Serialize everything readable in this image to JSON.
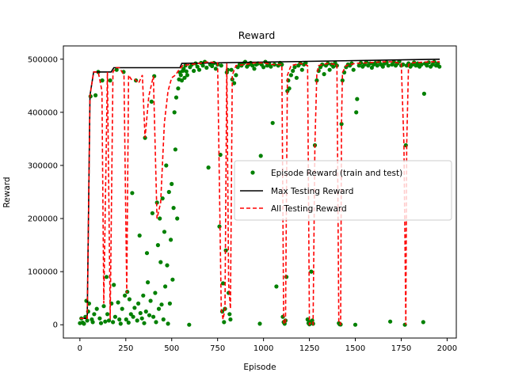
{
  "chart_data": {
    "type": "scatter",
    "title": "Reward",
    "xlabel": "Episode",
    "ylabel": "Reward",
    "xlim": [
      -90,
      2050
    ],
    "ylim": [
      -25000,
      525000
    ],
    "xticks": [
      0,
      250,
      500,
      750,
      1000,
      1250,
      1500,
      1750,
      2000
    ],
    "yticks": [
      0,
      100000,
      200000,
      300000,
      400000,
      500000
    ],
    "grid": false,
    "legend_position": "center-right",
    "colors": {
      "episode": "#008000",
      "max": "#000000",
      "all": "#ff0000"
    },
    "series": [
      {
        "name": "Episode Reward (train and test)",
        "kind": "scatter",
        "points": [
          [
            0,
            3000
          ],
          [
            8,
            12000
          ],
          [
            15,
            4000
          ],
          [
            22,
            2000
          ],
          [
            30,
            15000
          ],
          [
            35,
            45000
          ],
          [
            40,
            8000
          ],
          [
            45,
            25000
          ],
          [
            50,
            40000
          ],
          [
            58,
            430000
          ],
          [
            65,
            10000
          ],
          [
            70,
            5000
          ],
          [
            78,
            20000
          ],
          [
            85,
            432000
          ],
          [
            92,
            30000
          ],
          [
            100,
            476000
          ],
          [
            108,
            12000
          ],
          [
            115,
            3000
          ],
          [
            122,
            460000
          ],
          [
            130,
            35000
          ],
          [
            138,
            6000
          ],
          [
            145,
            90000
          ],
          [
            150,
            20000
          ],
          [
            158,
            8000
          ],
          [
            165,
            460000
          ],
          [
            172,
            40000
          ],
          [
            180,
            5000
          ],
          [
            185,
            75000
          ],
          [
            192,
            15000
          ],
          [
            200,
            480000
          ],
          [
            208,
            42000
          ],
          [
            215,
            10000
          ],
          [
            222,
            2000
          ],
          [
            230,
            30000
          ],
          [
            238,
            476000
          ],
          [
            245,
            55000
          ],
          [
            252,
            10000
          ],
          [
            258,
            62000
          ],
          [
            265,
            4000
          ],
          [
            270,
            48000
          ],
          [
            278,
            20000
          ],
          [
            285,
            248000
          ],
          [
            290,
            15000
          ],
          [
            298,
            32000
          ],
          [
            305,
            460000
          ],
          [
            312,
            8000
          ],
          [
            318,
            40000
          ],
          [
            325,
            168000
          ],
          [
            330,
            22000
          ],
          [
            338,
            12000
          ],
          [
            345,
            55000
          ],
          [
            350,
            3000
          ],
          [
            355,
            352000
          ],
          [
            360,
            25000
          ],
          [
            365,
            135000
          ],
          [
            370,
            80000
          ],
          [
            378,
            18000
          ],
          [
            385,
            45000
          ],
          [
            390,
            420000
          ],
          [
            395,
            210000
          ],
          [
            400,
            15000
          ],
          [
            405,
            468000
          ],
          [
            410,
            60000
          ],
          [
            415,
            5000
          ],
          [
            420,
            230000
          ],
          [
            425,
            150000
          ],
          [
            430,
            30000
          ],
          [
            435,
            200000
          ],
          [
            440,
            118000
          ],
          [
            445,
            38000
          ],
          [
            450,
            238000
          ],
          [
            455,
            10000
          ],
          [
            460,
            175000
          ],
          [
            465,
            72000
          ],
          [
            470,
            300000
          ],
          [
            475,
            112000
          ],
          [
            480,
            2000
          ],
          [
            485,
            250000
          ],
          [
            490,
            40000
          ],
          [
            495,
            160000
          ],
          [
            500,
            265000
          ],
          [
            505,
            85000
          ],
          [
            510,
            220000
          ],
          [
            515,
            400000
          ],
          [
            520,
            330000
          ],
          [
            525,
            428000
          ],
          [
            530,
            200000
          ],
          [
            535,
            445000
          ],
          [
            540,
            462000
          ],
          [
            545,
            475000
          ],
          [
            550,
            470000
          ],
          [
            555,
            460000
          ],
          [
            560,
            478000
          ],
          [
            565,
            482000
          ],
          [
            570,
            465000
          ],
          [
            575,
            488000
          ],
          [
            580,
            477000
          ],
          [
            585,
            470000
          ],
          [
            595,
            0
          ],
          [
            600,
            485000
          ],
          [
            610,
            490000
          ],
          [
            620,
            478000
          ],
          [
            630,
            492000
          ],
          [
            640,
            486000
          ],
          [
            650,
            480000
          ],
          [
            660,
            493000
          ],
          [
            670,
            488000
          ],
          [
            680,
            495000
          ],
          [
            690,
            484000
          ],
          [
            700,
            296000
          ],
          [
            710,
            490000
          ],
          [
            720,
            487000
          ],
          [
            730,
            493000
          ],
          [
            740,
            482000
          ],
          [
            750,
            490000
          ],
          [
            760,
            185000
          ],
          [
            765,
            320000
          ],
          [
            770,
            488000
          ],
          [
            775,
            25000
          ],
          [
            780,
            78000
          ],
          [
            785,
            5000
          ],
          [
            790,
            30000
          ],
          [
            795,
            140000
          ],
          [
            800,
            475000
          ],
          [
            805,
            480000
          ],
          [
            810,
            60000
          ],
          [
            815,
            20000
          ],
          [
            820,
            10000
          ],
          [
            825,
            480000
          ],
          [
            830,
            462000
          ],
          [
            840,
            455000
          ],
          [
            850,
            470000
          ],
          [
            860,
            485000
          ],
          [
            870,
            490000
          ],
          [
            880,
            488000
          ],
          [
            890,
            492000
          ],
          [
            900,
            495000
          ],
          [
            910,
            486000
          ],
          [
            920,
            490000
          ],
          [
            930,
            493000
          ],
          [
            940,
            488000
          ],
          [
            950,
            482000
          ],
          [
            960,
            490000
          ],
          [
            970,
            492000
          ],
          [
            980,
            2000
          ],
          [
            985,
            318000
          ],
          [
            990,
            490000
          ],
          [
            1000,
            485000
          ],
          [
            1010,
            495000
          ],
          [
            1020,
            488000
          ],
          [
            1030,
            492000
          ],
          [
            1040,
            486000
          ],
          [
            1050,
            380000
          ],
          [
            1060,
            490000
          ],
          [
            1070,
            72000
          ],
          [
            1080,
            488000
          ],
          [
            1090,
            493000
          ],
          [
            1100,
            490000
          ],
          [
            1105,
            15000
          ],
          [
            1110,
            5000
          ],
          [
            1115,
            2000
          ],
          [
            1120,
            8000
          ],
          [
            1125,
            90000
          ],
          [
            1130,
            440000
          ],
          [
            1135,
            460000
          ],
          [
            1140,
            445000
          ],
          [
            1150,
            470000
          ],
          [
            1160,
            478000
          ],
          [
            1170,
            485000
          ],
          [
            1180,
            465000
          ],
          [
            1190,
            488000
          ],
          [
            1200,
            492000
          ],
          [
            1210,
            480000
          ],
          [
            1220,
            490000
          ],
          [
            1230,
            493000
          ],
          [
            1240,
            10000
          ],
          [
            1245,
            3000
          ],
          [
            1250,
            1000
          ],
          [
            1255,
            5000
          ],
          [
            1260,
            100000
          ],
          [
            1265,
            8000
          ],
          [
            1270,
            2000
          ],
          [
            1280,
            338000
          ],
          [
            1290,
            460000
          ],
          [
            1300,
            478000
          ],
          [
            1310,
            485000
          ],
          [
            1320,
            490000
          ],
          [
            1330,
            472000
          ],
          [
            1340,
            488000
          ],
          [
            1350,
            492000
          ],
          [
            1360,
            480000
          ],
          [
            1370,
            490000
          ],
          [
            1380,
            486000
          ],
          [
            1390,
            493000
          ],
          [
            1400,
            488000
          ],
          [
            1410,
            3000
          ],
          [
            1415,
            1000
          ],
          [
            1420,
            500
          ],
          [
            1425,
            378000
          ],
          [
            1430,
            460000
          ],
          [
            1440,
            475000
          ],
          [
            1450,
            485000
          ],
          [
            1460,
            490000
          ],
          [
            1470,
            488000
          ],
          [
            1480,
            492000
          ],
          [
            1490,
            480000
          ],
          [
            1500,
            0
          ],
          [
            1505,
            400000
          ],
          [
            1510,
            425000
          ],
          [
            1520,
            488000
          ],
          [
            1530,
            493000
          ],
          [
            1540,
            486000
          ],
          [
            1550,
            490000
          ],
          [
            1560,
            495000
          ],
          [
            1570,
            488000
          ],
          [
            1580,
            492000
          ],
          [
            1590,
            484000
          ],
          [
            1600,
            490000
          ],
          [
            1610,
            493000
          ],
          [
            1620,
            488000
          ],
          [
            1630,
            495000
          ],
          [
            1640,
            490000
          ],
          [
            1650,
            486000
          ],
          [
            1660,
            492000
          ],
          [
            1670,
            494000
          ],
          [
            1680,
            488000
          ],
          [
            1690,
            6000
          ],
          [
            1700,
            490000
          ],
          [
            1710,
            495000
          ],
          [
            1720,
            488000
          ],
          [
            1730,
            492000
          ],
          [
            1740,
            496000
          ],
          [
            1750,
            488000
          ],
          [
            1760,
            490000
          ],
          [
            1770,
            0
          ],
          [
            1775,
            338000
          ],
          [
            1780,
            488000
          ],
          [
            1790,
            492000
          ],
          [
            1800,
            486000
          ],
          [
            1810,
            490000
          ],
          [
            1820,
            494000
          ],
          [
            1830,
            488000
          ],
          [
            1840,
            492000
          ],
          [
            1850,
            486000
          ],
          [
            1860,
            490000
          ],
          [
            1870,
            5000
          ],
          [
            1875,
            435000
          ],
          [
            1880,
            492000
          ],
          [
            1890,
            488000
          ],
          [
            1900,
            494000
          ],
          [
            1910,
            486000
          ],
          [
            1920,
            490000
          ],
          [
            1930,
            495000
          ],
          [
            1940,
            488000
          ],
          [
            1950,
            492000
          ],
          [
            1958,
            486000
          ]
        ]
      },
      {
        "name": "Max Testing Reward",
        "kind": "line",
        "x": [
          0,
          40,
          55,
          75,
          170,
          185,
          545,
          555,
          1960
        ],
        "y": [
          12000,
          12000,
          432000,
          476000,
          476000,
          484000,
          484000,
          492000,
          500000
        ]
      },
      {
        "name": "All Testing Reward",
        "kind": "dashed-line",
        "x": [
          0,
          40,
          55,
          75,
          100,
          120,
          130,
          150,
          165,
          180,
          195,
          215,
          240,
          255,
          265,
          280,
          300,
          320,
          340,
          355,
          375,
          400,
          420,
          440,
          460,
          480,
          500,
          520,
          540,
          560,
          600,
          650,
          700,
          750,
          770,
          780,
          790,
          800,
          810,
          820,
          830,
          850,
          900,
          950,
          1000,
          1050,
          1100,
          1110,
          1115,
          1120,
          1130,
          1150,
          1200,
          1240,
          1250,
          1260,
          1270,
          1280,
          1290,
          1300,
          1350,
          1400,
          1410,
          1420,
          1425,
          1430,
          1450,
          1500,
          1550,
          1600,
          1650,
          1700,
          1750,
          1765,
          1775,
          1780,
          1790,
          1800,
          1850,
          1900,
          1960
        ],
        "y": [
          12000,
          12000,
          432000,
          476000,
          476000,
          440000,
          40000,
          476000,
          10000,
          476000,
          484000,
          484000,
          470000,
          60000,
          470000,
          462000,
          462000,
          455000,
          470000,
          352000,
          430000,
          468000,
          200000,
          230000,
          380000,
          440000,
          465000,
          470000,
          480000,
          488000,
          490000,
          492000,
          495000,
          493000,
          30000,
          10000,
          30000,
          492000,
          78000,
          30000,
          470000,
          488000,
          490000,
          493000,
          493000,
          490000,
          490000,
          5000,
          1000,
          5000,
          470000,
          488000,
          492000,
          488000,
          1000,
          5000,
          1000,
          338000,
          470000,
          488000,
          492000,
          490000,
          2000,
          500,
          378000,
          475000,
          488000,
          492000,
          493000,
          494000,
          495000,
          495000,
          492000,
          340000,
          0,
          340000,
          490000,
          493000,
          494000,
          495000,
          495000
        ]
      }
    ]
  }
}
